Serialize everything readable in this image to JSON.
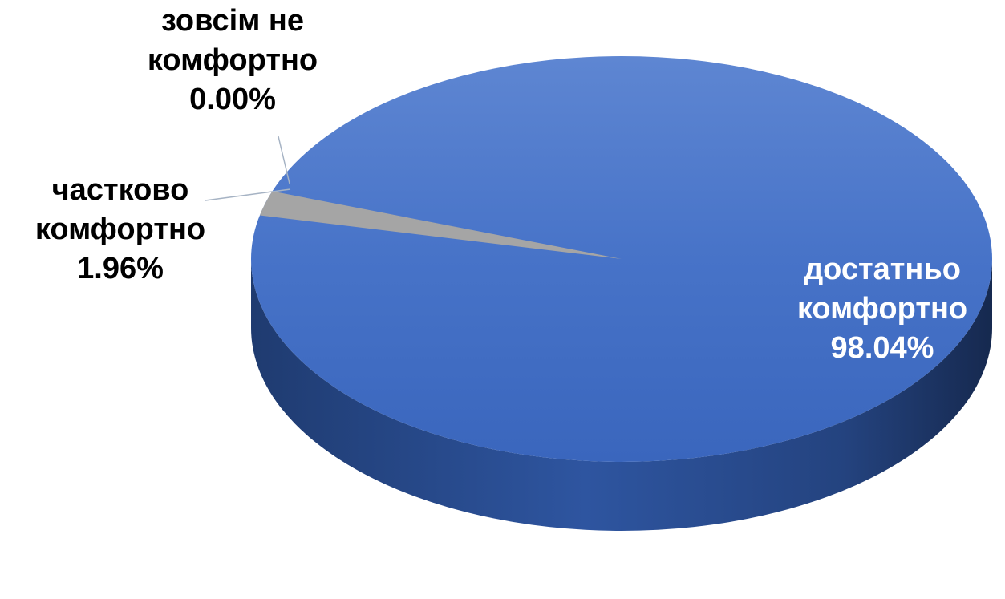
{
  "chart_data": {
    "type": "pie",
    "style": "3d",
    "title": "",
    "legend": "none",
    "slices": [
      {
        "label": "достатньо комфортно",
        "label_lines": [
          "достатньо",
          "комфортно"
        ],
        "percent_text": "98.04%",
        "value": 98.04,
        "color": "#4472C4",
        "label_color": "#ffffff",
        "label_position": "inside"
      },
      {
        "label": "частково комфортно",
        "label_lines": [
          "частково",
          "комфортно"
        ],
        "percent_text": "1.96%",
        "value": 1.96,
        "color": "#A5A5A5",
        "label_color": "#000000",
        "label_position": "outside"
      },
      {
        "label": "зовсім не комфортно",
        "label_lines": [
          "зовсім не",
          "комфортно"
        ],
        "percent_text": "0.00%",
        "value": 0.0,
        "color": "#ED7D31",
        "label_color": "#000000",
        "label_position": "outside"
      }
    ]
  }
}
